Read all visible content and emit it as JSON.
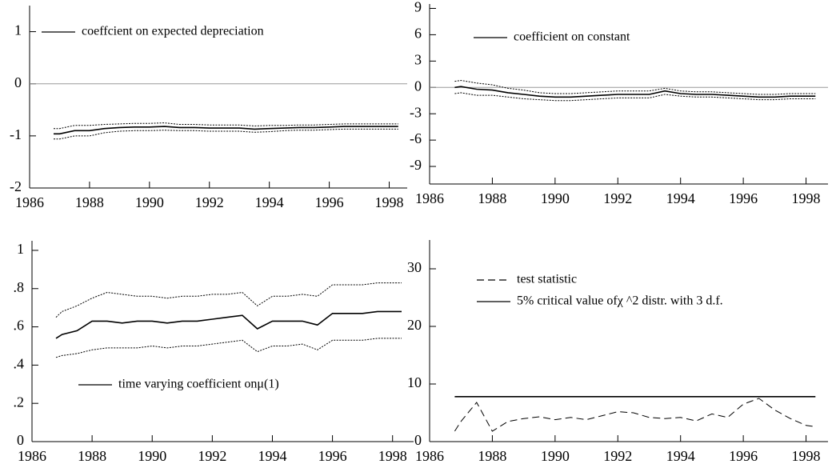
{
  "chart_data": [
    {
      "type": "line",
      "xlim": [
        1986,
        1998.6
      ],
      "ylim": [
        -2,
        1.5
      ],
      "xticks": [
        1986,
        1988,
        1990,
        1992,
        1994,
        1996,
        1998
      ],
      "yticks": [
        -2,
        -1,
        0,
        1
      ],
      "reference_line": 0,
      "x": [
        1986.8,
        1987,
        1987.5,
        1988,
        1988.5,
        1989,
        1989.5,
        1990,
        1990.5,
        1991,
        1991.5,
        1992,
        1992.5,
        1993,
        1993.5,
        1994,
        1994.5,
        1995,
        1995.5,
        1996,
        1996.5,
        1997,
        1997.5,
        1998,
        1998.3
      ],
      "series": [
        {
          "name": "coeffcient on expected depreciation",
          "color": "#000000",
          "dash": "solid",
          "values": [
            -0.96,
            -0.96,
            -0.9,
            -0.9,
            -0.86,
            -0.84,
            -0.83,
            -0.83,
            -0.82,
            -0.84,
            -0.84,
            -0.85,
            -0.85,
            -0.85,
            -0.87,
            -0.86,
            -0.85,
            -0.84,
            -0.84,
            -0.83,
            -0.82,
            -0.82,
            -0.82,
            -0.82,
            -0.82
          ]
        },
        {
          "color": "#000000",
          "dash": "dotted",
          "values": [
            -0.86,
            -0.86,
            -0.8,
            -0.8,
            -0.78,
            -0.77,
            -0.76,
            -0.76,
            -0.75,
            -0.78,
            -0.78,
            -0.79,
            -0.79,
            -0.79,
            -0.81,
            -0.8,
            -0.8,
            -0.79,
            -0.79,
            -0.78,
            -0.77,
            -0.77,
            -0.77,
            -0.77,
            -0.77
          ]
        },
        {
          "color": "#000000",
          "dash": "dotted",
          "values": [
            -1.06,
            -1.06,
            -1.0,
            -1.0,
            -0.94,
            -0.91,
            -0.9,
            -0.9,
            -0.89,
            -0.9,
            -0.9,
            -0.91,
            -0.91,
            -0.91,
            -0.93,
            -0.92,
            -0.9,
            -0.89,
            -0.89,
            -0.88,
            -0.87,
            -0.87,
            -0.87,
            -0.87,
            -0.87
          ]
        }
      ]
    },
    {
      "type": "line",
      "xlim": [
        1986,
        1998.7
      ],
      "ylim": [
        -11,
        9.5
      ],
      "xticks": [
        1986,
        1988,
        1990,
        1992,
        1994,
        1996,
        1998
      ],
      "yticks": [
        -9,
        -6,
        -3,
        0,
        3,
        6,
        9
      ],
      "reference_line": 0,
      "x": [
        1986.8,
        1987,
        1987.5,
        1988,
        1988.5,
        1989,
        1989.5,
        1990,
        1990.5,
        1991,
        1991.5,
        1992,
        1992.5,
        1993,
        1993.5,
        1994,
        1994.5,
        1995,
        1995.5,
        1996,
        1996.5,
        1997,
        1997.5,
        1998,
        1998.3
      ],
      "series": [
        {
          "name": "coefficient on constant",
          "color": "#000000",
          "dash": "solid",
          "values": [
            0.0,
            0.1,
            -0.2,
            -0.3,
            -0.6,
            -0.8,
            -1.0,
            -1.1,
            -1.1,
            -1.0,
            -0.9,
            -0.8,
            -0.8,
            -0.8,
            -0.4,
            -0.7,
            -0.8,
            -0.8,
            -0.9,
            -1.0,
            -1.1,
            -1.1,
            -1.0,
            -1.0,
            -1.0
          ]
        },
        {
          "color": "#000000",
          "dash": "dotted",
          "values": [
            0.7,
            0.8,
            0.5,
            0.3,
            -0.1,
            -0.3,
            -0.6,
            -0.7,
            -0.7,
            -0.6,
            -0.5,
            -0.4,
            -0.4,
            -0.4,
            -0.1,
            -0.4,
            -0.5,
            -0.5,
            -0.6,
            -0.7,
            -0.8,
            -0.8,
            -0.7,
            -0.7,
            -0.7
          ]
        },
        {
          "color": "#000000",
          "dash": "dotted",
          "values": [
            -0.7,
            -0.6,
            -0.9,
            -0.9,
            -1.1,
            -1.3,
            -1.4,
            -1.5,
            -1.5,
            -1.4,
            -1.3,
            -1.2,
            -1.2,
            -1.2,
            -0.8,
            -1.0,
            -1.1,
            -1.1,
            -1.2,
            -1.3,
            -1.4,
            -1.4,
            -1.3,
            -1.3,
            -1.3
          ]
        }
      ]
    },
    {
      "type": "line",
      "xlim": [
        1986,
        1998.7
      ],
      "ylim": [
        0,
        1.05
      ],
      "xticks": [
        1986,
        1988,
        1990,
        1992,
        1994,
        1996,
        1998
      ],
      "yticks": [
        0,
        {
          "value": 0.2,
          "label": ".2"
        },
        {
          "value": 0.4,
          "label": ".4"
        },
        {
          "value": 0.6,
          "label": ".6"
        },
        {
          "value": 0.8,
          "label": ".8"
        },
        1
      ],
      "x": [
        1986.8,
        1987,
        1987.5,
        1988,
        1988.5,
        1989,
        1989.5,
        1990,
        1990.5,
        1991,
        1991.5,
        1992,
        1992.5,
        1993,
        1993.5,
        1994,
        1994.5,
        1995,
        1995.5,
        1996,
        1996.5,
        1997,
        1997.5,
        1998,
        1998.3
      ],
      "series": [
        {
          "name": "time varying coefficient onμ(1)",
          "color": "#000000",
          "dash": "solid",
          "values": [
            0.54,
            0.56,
            0.58,
            0.63,
            0.63,
            0.62,
            0.63,
            0.63,
            0.62,
            0.63,
            0.63,
            0.64,
            0.65,
            0.66,
            0.59,
            0.63,
            0.63,
            0.63,
            0.61,
            0.67,
            0.67,
            0.67,
            0.68,
            0.68,
            0.68
          ]
        },
        {
          "color": "#000000",
          "dash": "dotted",
          "values": [
            0.65,
            0.68,
            0.71,
            0.75,
            0.78,
            0.77,
            0.76,
            0.76,
            0.75,
            0.76,
            0.76,
            0.77,
            0.77,
            0.78,
            0.71,
            0.76,
            0.76,
            0.77,
            0.76,
            0.82,
            0.82,
            0.82,
            0.83,
            0.83,
            0.83
          ]
        },
        {
          "color": "#000000",
          "dash": "dotted",
          "values": [
            0.44,
            0.45,
            0.46,
            0.48,
            0.49,
            0.49,
            0.49,
            0.5,
            0.49,
            0.5,
            0.5,
            0.51,
            0.52,
            0.53,
            0.47,
            0.5,
            0.5,
            0.51,
            0.48,
            0.53,
            0.53,
            0.53,
            0.54,
            0.54,
            0.54
          ]
        }
      ]
    },
    {
      "type": "line",
      "xlim": [
        1986,
        1998.7
      ],
      "ylim": [
        0,
        35
      ],
      "xticks": [
        1986,
        1988,
        1990,
        1992,
        1994,
        1996,
        1998
      ],
      "yticks": [
        0,
        10,
        20,
        30
      ],
      "x": [
        1986.8,
        1987,
        1987.5,
        1988,
        1988.5,
        1989,
        1989.5,
        1990,
        1990.5,
        1991,
        1991.5,
        1992,
        1992.5,
        1993,
        1993.5,
        1994,
        1994.5,
        1995,
        1995.5,
        1996,
        1996.5,
        1997,
        1997.5,
        1998,
        1998.3
      ],
      "series": [
        {
          "name": "test statistic",
          "color": "#000000",
          "dash": "dashed",
          "values": [
            1.8,
            3.5,
            6.8,
            1.8,
            3.5,
            4,
            4.3,
            3.8,
            4.2,
            3.8,
            4.5,
            5.2,
            5,
            4.2,
            4,
            4.2,
            3.6,
            4.8,
            4.2,
            6.5,
            7.5,
            5.5,
            4,
            2.8,
            2.6
          ]
        },
        {
          "name": "5% critical value ofχ ^2 distr. with 3 d.f.",
          "color": "#000000",
          "dash": "solid",
          "values": [
            7.81,
            7.81,
            7.81,
            7.81,
            7.81,
            7.81,
            7.81,
            7.81,
            7.81,
            7.81,
            7.81,
            7.81,
            7.81,
            7.81,
            7.81,
            7.81,
            7.81,
            7.81,
            7.81,
            7.81,
            7.81,
            7.81,
            7.81,
            7.81,
            7.81
          ]
        }
      ]
    }
  ]
}
